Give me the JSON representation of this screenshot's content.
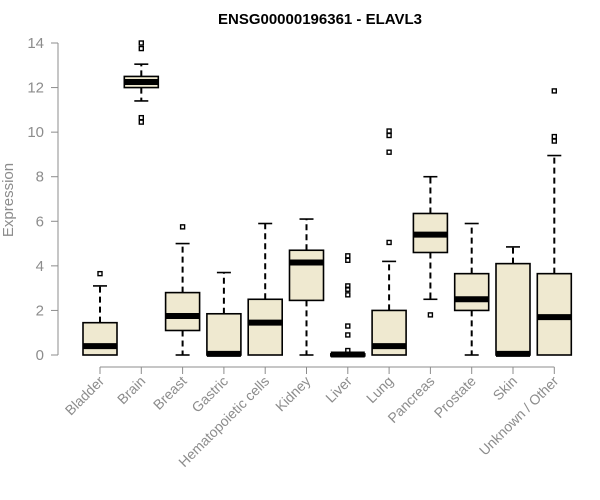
{
  "chart_data": {
    "type": "box",
    "title": "ENSG00000196361 - ELAVL3",
    "ylabel": "Expression",
    "xlabel": "",
    "ylim": [
      0,
      14
    ],
    "yticks": [
      0,
      2,
      4,
      6,
      8,
      10,
      12,
      14
    ],
    "grid": false,
    "categories": [
      "Bladder",
      "Brain",
      "Breast",
      "Gastric",
      "Hematopoietic cells",
      "Kidney",
      "Liver",
      "Lung",
      "Pancreas",
      "Prostate",
      "Skin",
      "Unknown / Other"
    ],
    "boxes": [
      {
        "category": "Bladder",
        "min": 0,
        "q1": 0,
        "median": 0.4,
        "q3": 1.45,
        "max": 3.1,
        "outliers": [
          3.65
        ]
      },
      {
        "category": "Brain",
        "min": 11.4,
        "q1": 12.0,
        "median": 12.25,
        "q3": 12.5,
        "max": 13.05,
        "outliers": [
          10.45,
          10.65,
          13.75,
          14.0
        ]
      },
      {
        "category": "Breast",
        "min": 0,
        "q1": 1.1,
        "median": 1.75,
        "q3": 2.8,
        "max": 5.0,
        "outliers": [
          5.75
        ]
      },
      {
        "category": "Gastric",
        "min": 0,
        "q1": 0,
        "median": 0.05,
        "q3": 1.85,
        "max": 3.7,
        "outliers": []
      },
      {
        "category": "Hematopoietic cells",
        "min": 0,
        "q1": 0,
        "median": 1.45,
        "q3": 2.5,
        "max": 5.9,
        "outliers": []
      },
      {
        "category": "Kidney",
        "min": 0,
        "q1": 2.45,
        "median": 4.15,
        "q3": 4.7,
        "max": 6.1,
        "outliers": []
      },
      {
        "category": "Liver",
        "min": 0,
        "q1": 0,
        "median": 0.02,
        "q3": 0.05,
        "max": 0.1,
        "outliers": [
          0.2,
          0.9,
          1.3,
          2.7,
          2.95,
          3.1,
          4.25,
          4.45
        ]
      },
      {
        "category": "Lung",
        "min": 0,
        "q1": 0,
        "median": 0.4,
        "q3": 2.0,
        "max": 4.2,
        "outliers": [
          5.05,
          9.1,
          9.85,
          10.05
        ]
      },
      {
        "category": "Pancreas",
        "min": 2.5,
        "q1": 4.6,
        "median": 5.4,
        "q3": 6.35,
        "max": 8.0,
        "outliers": [
          1.8
        ]
      },
      {
        "category": "Prostate",
        "min": 0,
        "q1": 2.0,
        "median": 2.5,
        "q3": 3.65,
        "max": 5.9,
        "outliers": []
      },
      {
        "category": "Skin",
        "min": 0,
        "q1": 0,
        "median": 0.05,
        "q3": 4.1,
        "max": 4.85,
        "outliers": []
      },
      {
        "category": "Unknown / Other",
        "min": 0,
        "q1": 0,
        "median": 1.7,
        "q3": 3.65,
        "max": 8.95,
        "outliers": [
          9.6,
          9.8,
          11.85
        ]
      }
    ],
    "box_fill": "#efe9d0",
    "axis_color": "#8c8c8c"
  }
}
